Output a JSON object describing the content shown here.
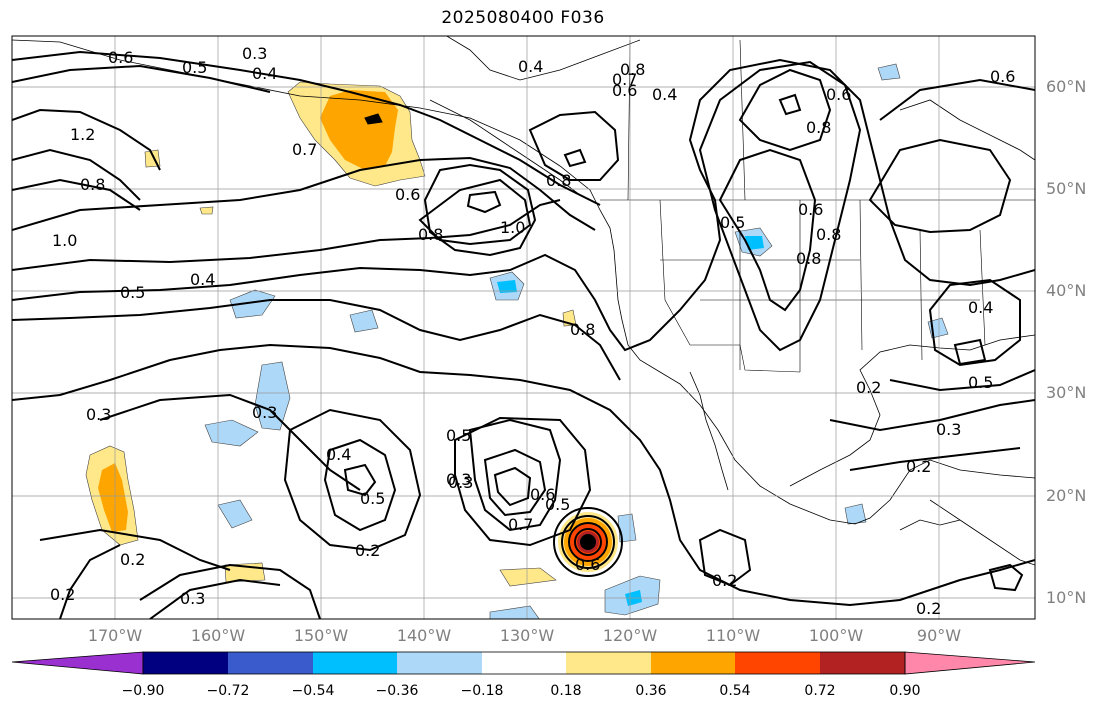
{
  "title": "2025080400 F036",
  "lat_labels": [
    "60°N",
    "50°N",
    "40°N",
    "30°N",
    "20°N",
    "10°N"
  ],
  "lon_labels": [
    "170°W",
    "160°W",
    "150°W",
    "140°W",
    "130°W",
    "120°W",
    "110°W",
    "100°W",
    "90°W"
  ],
  "colorbar": {
    "tick_labels": [
      "−0.90",
      "−0.72",
      "−0.54",
      "−0.36",
      "−0.18",
      "0.18",
      "0.36",
      "0.54",
      "0.72",
      "0.90"
    ],
    "colors": [
      "#9b30d0",
      "#000080",
      "#3a5bcc",
      "#00bfff",
      "#add8f8",
      "#ffffff",
      "#ffe88a",
      "#ffa500",
      "#ff4500",
      "#b22222",
      "#ff88aa"
    ]
  },
  "contour_labels": [
    "0.6",
    "0.5",
    "0.3",
    "0.4",
    "0.7",
    "1.2",
    "0.8",
    "1.0",
    "0.6",
    "0.8",
    "0.4",
    "0.8",
    "0.7",
    "0.6",
    "0.4",
    "0.6",
    "0.8",
    "0.6",
    "0.6",
    "0.8",
    "0.8",
    "0.5",
    "1.0",
    "0.8",
    "0.5",
    "0.4",
    "0.2",
    "0.8",
    "0.5",
    "0.3",
    "0.3",
    "0.4",
    "0.5",
    "0.3",
    "0.7",
    "0.6",
    "0.5",
    "0.2",
    "0.3",
    "0.2",
    "0.2",
    "0.6",
    "0.2",
    "0.4",
    "0.2",
    "0.5",
    "0.3",
    "0.3",
    "0.2"
  ]
}
